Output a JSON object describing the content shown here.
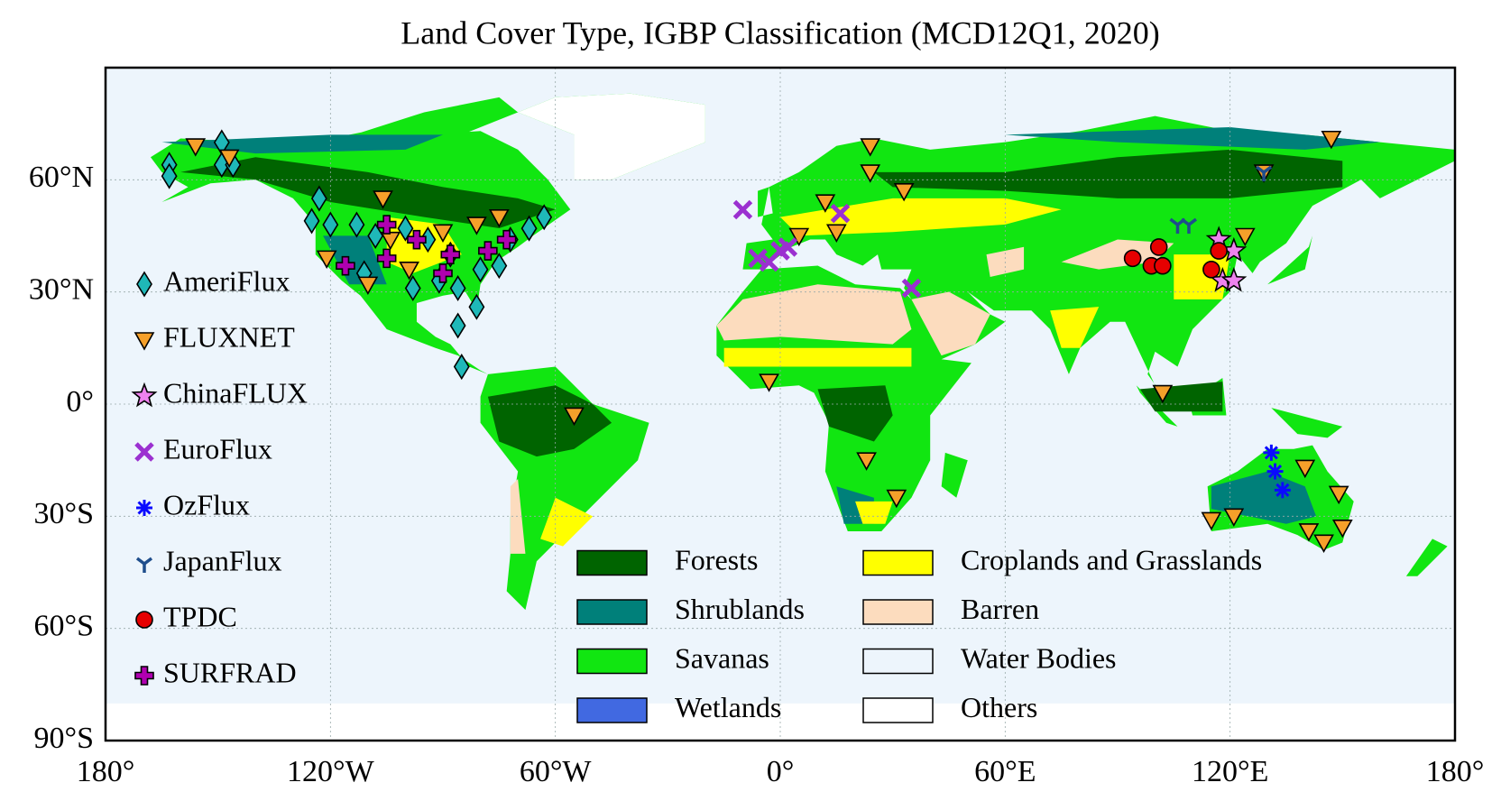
{
  "title": "Land Cover Type, IGBP Classification (MCD12Q1, 2020)",
  "map": {
    "xlim": [
      -180,
      180
    ],
    "ylim": [
      -90,
      90
    ],
    "xticks": [
      {
        "value": -180,
        "label": "180°"
      },
      {
        "value": -120,
        "label": "120°W"
      },
      {
        "value": -60,
        "label": "60°W"
      },
      {
        "value": 0,
        "label": "0°"
      },
      {
        "value": 60,
        "label": "60°E"
      },
      {
        "value": 120,
        "label": "120°E"
      },
      {
        "value": 180,
        "label": "180°"
      }
    ],
    "yticks": [
      {
        "value": -90,
        "label": "90°S"
      },
      {
        "value": -60,
        "label": "60°S"
      },
      {
        "value": -30,
        "label": "30°S"
      },
      {
        "value": 0,
        "label": "0°"
      },
      {
        "value": 30,
        "label": "30°N"
      },
      {
        "value": 60,
        "label": "60°N"
      }
    ],
    "grid": true
  },
  "networks": [
    {
      "name": "AmeriFlux",
      "marker": "diamond",
      "color": "#1fb8b8",
      "lon": [
        -163,
        -163,
        -149,
        -149,
        -146,
        -125,
        -123,
        -120,
        -113,
        -108,
        -100,
        -94,
        -88,
        -80,
        -72,
        -67,
        -63,
        -111,
        -98,
        -86,
        -81,
        -86,
        -85,
        -75,
        -91
      ],
      "lat": [
        64,
        61,
        70,
        64,
        64,
        49,
        55,
        48,
        48,
        45,
        47,
        44,
        40,
        36,
        44,
        47,
        50,
        35,
        31,
        31,
        26,
        21,
        10,
        37,
        33
      ]
    },
    {
      "name": "FLUXNET",
      "marker": "triangle",
      "color": "#f5a02a",
      "lon": [
        -156,
        -147,
        -121,
        -110,
        -106,
        -104,
        -99,
        -90,
        -81,
        -75,
        -55,
        -3,
        5,
        12,
        15,
        24,
        24,
        33,
        23,
        31,
        102,
        115,
        121,
        124,
        129,
        147,
        140,
        149,
        141,
        145,
        150
      ],
      "lat": [
        69,
        66,
        39,
        32,
        55,
        44,
        36,
        46,
        48,
        50,
        -3,
        6,
        45,
        54,
        46,
        69,
        62,
        57,
        -15,
        -25,
        3,
        -31,
        -30,
        45,
        62,
        71,
        -17,
        -24,
        -34,
        -37,
        -33
      ]
    },
    {
      "name": "ChinaFLUX",
      "marker": "star",
      "color": "#ee82ee",
      "lon": [
        117,
        121,
        118,
        121
      ],
      "lat": [
        44,
        41,
        33,
        33
      ]
    },
    {
      "name": "EuroFlux",
      "marker": "cross",
      "color": "#9b30d0",
      "lon": [
        -10,
        -6,
        -3,
        0,
        2,
        16,
        35
      ],
      "lat": [
        52,
        39,
        38,
        41,
        42,
        51,
        31
      ]
    },
    {
      "name": "OzFlux",
      "marker": "asterisk",
      "color": "#0a0aff",
      "lon": [
        131,
        132,
        134
      ],
      "lat": [
        -13,
        -18,
        -23
      ]
    },
    {
      "name": "JapanFlux",
      "marker": "tri",
      "color": "#1f4e8c",
      "lon": [
        106,
        109,
        129
      ],
      "lat": [
        48,
        48,
        62
      ]
    },
    {
      "name": "TPDC",
      "marker": "circle",
      "color": "#e60000",
      "lon": [
        94,
        99,
        101,
        102,
        115,
        117
      ],
      "lat": [
        39,
        37,
        42,
        37,
        36,
        41
      ]
    },
    {
      "name": "SURFRAD",
      "marker": "plus",
      "color": "#b000b0",
      "lon": [
        -116,
        -105,
        -105,
        -97,
        -90,
        -88,
        -78,
        -73
      ],
      "lat": [
        37,
        39,
        48,
        44,
        35,
        40,
        41,
        44
      ]
    }
  ],
  "land_cover": [
    {
      "name": "Forests",
      "color": "#006400"
    },
    {
      "name": "Shrublands",
      "color": "#00807a"
    },
    {
      "name": "Savanas",
      "color": "#11e611"
    },
    {
      "name": "Wetlands",
      "color": "#4169e1"
    },
    {
      "name": "Croplands and Grasslands",
      "color": "#ffff00"
    },
    {
      "name": "Barren",
      "color": "#fcdcbe"
    },
    {
      "name": "Water Bodies",
      "color": "#edf5fc"
    },
    {
      "name": "Others",
      "color": "#ffffff"
    }
  ]
}
